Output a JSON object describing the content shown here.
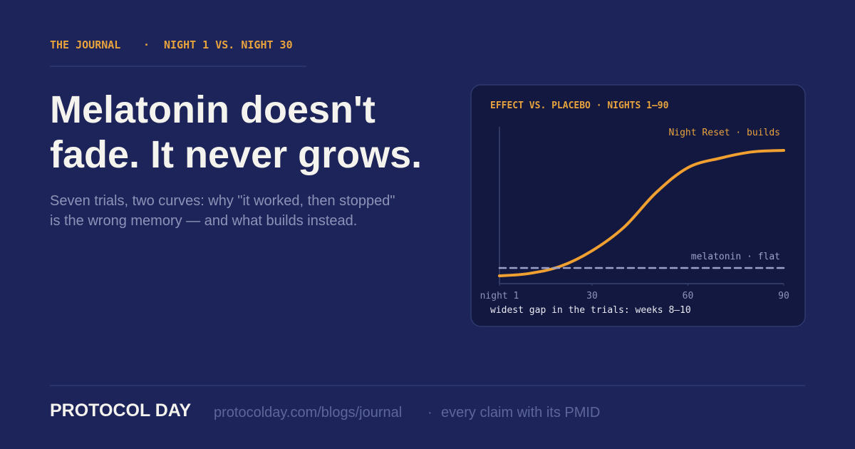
{
  "eyebrow": [
    "THE JOURNAL",
    "NIGHT 1 VS. NIGHT 30"
  ],
  "eyebrow_separator": "·",
  "headline": [
    "Melatonin doesn't",
    "fade. It never grows."
  ],
  "subtitle": [
    "Seven trials, two curves: why \"it worked, then stopped\"",
    "is the wrong memory — and what builds instead."
  ],
  "chart_data": {
    "type": "line",
    "title": "EFFECT VS. PLACEBO · NIGHTS 1–90",
    "caption": "widest gap in the trials: weeks 8–10",
    "xlim": [
      1,
      90
    ],
    "xticks": [
      {
        "value": 1,
        "label": "night 1"
      },
      30,
      60,
      90
    ],
    "ylim": [
      0,
      1
    ],
    "series": [
      {
        "name": "Night Reset · builds",
        "color": "#f0a030",
        "dashed": false,
        "x": [
          1,
          10,
          20,
          30,
          40,
          50,
          60,
          70,
          80,
          90
        ],
        "values": [
          0.05,
          0.064,
          0.11,
          0.21,
          0.36,
          0.58,
          0.74,
          0.8,
          0.84,
          0.85
        ]
      },
      {
        "name": "melatonin · flat",
        "color": "#9aa0c8",
        "dashed": true,
        "x": [
          1,
          90
        ],
        "values": [
          0.1,
          0.1
        ]
      }
    ]
  },
  "footer": {
    "brand": "PROTOCOL DAY",
    "url": "protocolday.com/blogs/journal",
    "separator": "·",
    "tagline": "every claim with its PMID"
  }
}
